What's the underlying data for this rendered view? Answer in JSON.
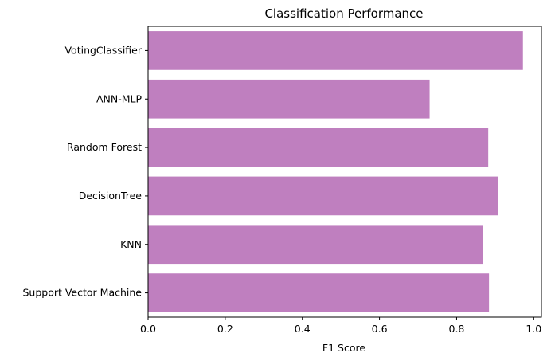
{
  "chart_data": {
    "type": "bar",
    "orientation": "horizontal",
    "title": "Classification Performance",
    "xlabel": "F1 Score",
    "ylabel": "",
    "categories": [
      "Support Vector Machine",
      "KNN",
      "DecisionTree",
      "Random Forest",
      "ANN-MLP",
      "VotingClassifier"
    ],
    "values": [
      0.884,
      0.868,
      0.908,
      0.882,
      0.73,
      0.972
    ],
    "xlim": [
      0,
      1.02
    ],
    "xticks": [
      "0.0",
      "0.2",
      "0.4",
      "0.6",
      "0.8",
      "1.0"
    ],
    "bar_color": "#bf7fbf",
    "grid": false,
    "legend": "none"
  }
}
